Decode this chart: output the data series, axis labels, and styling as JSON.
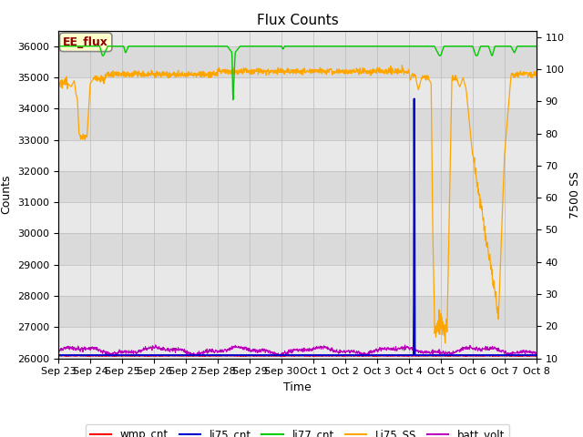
{
  "title": "Flux Counts",
  "xlabel": "Time",
  "ylabel_left": "Counts",
  "ylabel_right": "7500 SS",
  "annotation_text": "EE_flux",
  "annotation_color": "#8B0000",
  "annotation_bg": "#FFFFCC",
  "annotation_border": "#AAAAAA",
  "left_ylim": [
    26000,
    36500
  ],
  "right_ylim": [
    10,
    112
  ],
  "left_yticks": [
    26000,
    27000,
    28000,
    29000,
    30000,
    31000,
    32000,
    33000,
    34000,
    35000,
    36000
  ],
  "right_yticks": [
    10,
    20,
    30,
    40,
    50,
    60,
    70,
    80,
    90,
    100,
    110
  ],
  "bg_color": "#E8E8E8",
  "line_colors": {
    "wmp_cnt": "#FF0000",
    "li75_cnt": "#0000CC",
    "li77_cnt": "#00CC00",
    "Li75_SS": "#FFA500",
    "batt_volt": "#BB00BB"
  },
  "x_tick_labels": [
    "Sep 23",
    "Sep 24",
    "Sep 25",
    "Sep 26",
    "Sep 27",
    "Sep 28",
    "Sep 29",
    "Sep 30",
    "Oct 1",
    "Oct 2",
    "Oct 3",
    "Oct 4",
    "Oct 5",
    "Oct 6",
    "Oct 7",
    "Oct 8"
  ],
  "figsize": [
    6.4,
    4.8
  ],
  "dpi": 100
}
